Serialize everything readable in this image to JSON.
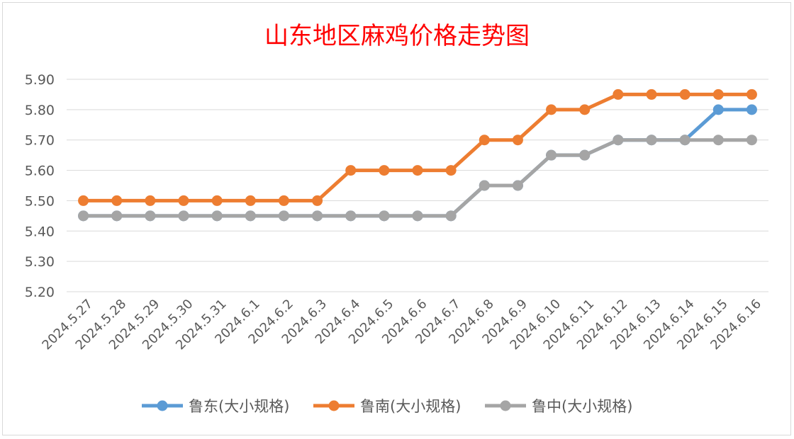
{
  "chart_data": {
    "type": "line",
    "title": "山东地区麻鸡价格走势图",
    "categories": [
      "2024.5.27",
      "2024.5.28",
      "2024.5.29",
      "2024.5.30",
      "2024.5.31",
      "2024.6.1",
      "2024.6.2",
      "2024.6.3",
      "2024.6.4",
      "2024.6.5",
      "2024.6.6",
      "2024.6.7",
      "2024.6.8",
      "2024.6.9",
      "2024.6.10",
      "2024.6.11",
      "2024.6.12",
      "2024.6.13",
      "2024.6.14",
      "2024.6.15",
      "2024.6.16"
    ],
    "ylim": [
      5.2,
      5.9
    ],
    "yticks": [
      "5.20",
      "5.30",
      "5.40",
      "5.50",
      "5.60",
      "5.70",
      "5.80",
      "5.90"
    ],
    "grid": true,
    "legend_position": "bottom",
    "series": [
      {
        "name": "鲁东(大小规格)",
        "color": "#5b9bd5",
        "values": [
          5.45,
          5.45,
          5.45,
          5.45,
          5.45,
          5.45,
          5.45,
          5.45,
          5.45,
          5.45,
          5.45,
          5.45,
          5.55,
          5.55,
          5.65,
          5.65,
          5.7,
          5.7,
          5.7,
          5.8,
          5.8
        ]
      },
      {
        "name": "鲁南(大小规格)",
        "color": "#ed7d31",
        "values": [
          5.5,
          5.5,
          5.5,
          5.5,
          5.5,
          5.5,
          5.5,
          5.5,
          5.6,
          5.6,
          5.6,
          5.6,
          5.7,
          5.7,
          5.8,
          5.8,
          5.85,
          5.85,
          5.85,
          5.85,
          5.85
        ]
      },
      {
        "name": "鲁中(大小规格)",
        "color": "#a5a5a5",
        "values": [
          5.45,
          5.45,
          5.45,
          5.45,
          5.45,
          5.45,
          5.45,
          5.45,
          5.45,
          5.45,
          5.45,
          5.45,
          5.55,
          5.55,
          5.65,
          5.65,
          5.7,
          5.7,
          5.7,
          5.7,
          5.7
        ]
      }
    ]
  }
}
